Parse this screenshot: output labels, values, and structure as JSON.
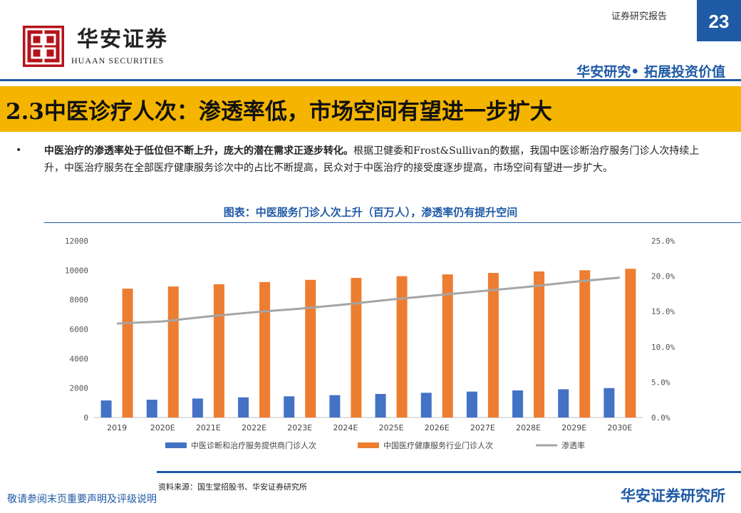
{
  "header": {
    "logo_cn": "华安证券",
    "logo_en": "HUAAN SECURITIES",
    "report_type": "证券研究报告",
    "page_number": "23",
    "slogan": "华安研究• 拓展投资价值"
  },
  "title": "2.3中医诊疗人次：渗透率低，市场空间有望进一步扩大",
  "body": {
    "bullet": "•",
    "bold_text": "中医治疗的渗透率处于低位但不断上升，庞大的潜在需求正逐步转化。",
    "text": "根据卫健委和Frost&Sullivan的数据，我国中医诊断治疗服务门诊人次持续上升，中医治疗服务在全部医疗健康服务诊次中的占比不断提高，民众对于中医治疗的接受度逐步提高，市场空间有望进一步扩大。"
  },
  "figure_caption": "图表：中医服务门诊人次上升（百万人），渗透率仍有提升空间",
  "chart_data": {
    "type": "bar",
    "categories": [
      "2019",
      "2020E",
      "2021E",
      "2022E",
      "2023E",
      "2024E",
      "2025E",
      "2026E",
      "2027E",
      "2028E",
      "2029E",
      "2030E"
    ],
    "series": [
      {
        "name": "中医诊断和治疗服务提供商门诊人次",
        "type": "bar",
        "axis": "left",
        "color": "#4472c4",
        "values": [
          1160,
          1210,
          1290,
          1370,
          1440,
          1520,
          1600,
          1680,
          1760,
          1840,
          1920,
          2000
        ]
      },
      {
        "name": "中国医疗健康服务行业门诊人次",
        "type": "bar",
        "axis": "left",
        "color": "#ed7d31",
        "values": [
          8750,
          8900,
          9050,
          9200,
          9350,
          9480,
          9600,
          9720,
          9820,
          9920,
          10000,
          10100
        ]
      },
      {
        "name": "渗透率",
        "type": "line",
        "axis": "right",
        "color": "#a5a5a5",
        "values": [
          13.3,
          13.6,
          14.3,
          14.9,
          15.4,
          16.0,
          16.7,
          17.3,
          17.9,
          18.5,
          19.2,
          19.8
        ]
      }
    ],
    "y_left": {
      "min": 0,
      "max": 12000,
      "ticks": [
        "0",
        "2000",
        "4000",
        "6000",
        "8000",
        "10000",
        "12000"
      ]
    },
    "y_right": {
      "min": 0,
      "max": 25,
      "ticks": [
        "0.0%",
        "5.0%",
        "10.0%",
        "15.0%",
        "20.0%",
        "25.0%"
      ]
    },
    "grid": false,
    "legend_position": "bottom"
  },
  "source": "资料来源：国生堂招股书、华安证券研究所",
  "footer": {
    "disclaimer": "敬请参阅末页重要声明及评级说明",
    "brand": "华安证券研究所"
  },
  "colors": {
    "brand_blue": "#1f5aa6",
    "title_band": "#f4b400",
    "logo_red": "#b5121b"
  }
}
